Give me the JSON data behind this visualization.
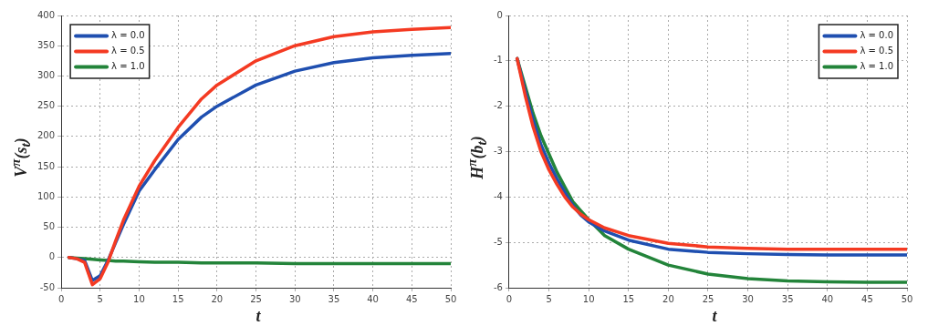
{
  "chart_data": [
    {
      "type": "line",
      "xlabel": "t",
      "ylabel": "V$^{π}$(s$_{t}$)",
      "x": [
        1,
        2,
        3,
        4,
        5,
        6,
        7,
        8,
        10,
        12,
        15,
        18,
        20,
        25,
        30,
        35,
        40,
        45,
        50
      ],
      "series": [
        {
          "name": "λ = 0.0",
          "color": "#1f4fb0",
          "values": [
            0,
            -2,
            -5,
            -38,
            -30,
            -5,
            25,
            55,
            110,
            145,
            195,
            232,
            250,
            285,
            308,
            322,
            330,
            334,
            337
          ]
        },
        {
          "name": "λ = 0.5",
          "color": "#f43a22",
          "values": [
            0,
            -2,
            -8,
            -45,
            -35,
            -8,
            28,
            62,
            118,
            160,
            215,
            262,
            285,
            325,
            350,
            365,
            373,
            377,
            380
          ]
        },
        {
          "name": "λ = 1.0",
          "color": "#23843a",
          "values": [
            0,
            -1,
            -2,
            -3,
            -4,
            -5,
            -6,
            -6,
            -7,
            -8,
            -8,
            -9,
            -9,
            -9,
            -10,
            -10,
            -10,
            -10,
            -10
          ]
        }
      ],
      "xlim": [
        0,
        50
      ],
      "xticks": [
        0,
        5,
        10,
        15,
        20,
        25,
        30,
        35,
        40,
        45,
        50
      ],
      "ylim": [
        -50,
        400
      ],
      "yticks": [
        -50,
        0,
        50,
        100,
        150,
        200,
        250,
        300,
        350,
        400
      ],
      "grid": true,
      "legend": "top left",
      "marker": "none",
      "line_style": "solid"
    },
    {
      "type": "line",
      "xlabel": "t",
      "ylabel": "H$^{π}$(b$_{t}$)",
      "x": [
        1,
        2,
        3,
        4,
        5,
        6,
        7,
        8,
        9,
        10,
        12,
        15,
        20,
        25,
        30,
        35,
        40,
        45,
        50
      ],
      "series": [
        {
          "name": "λ = 0.0",
          "color": "#1f4fb0",
          "values": [
            -0.95,
            -1.65,
            -2.3,
            -2.85,
            -3.25,
            -3.6,
            -3.9,
            -4.18,
            -4.4,
            -4.55,
            -4.75,
            -4.95,
            -5.15,
            -5.22,
            -5.25,
            -5.27,
            -5.28,
            -5.28,
            -5.28
          ]
        },
        {
          "name": "λ = 0.5",
          "color": "#f43a22",
          "values": [
            -0.95,
            -1.75,
            -2.45,
            -3.0,
            -3.4,
            -3.72,
            -4.0,
            -4.22,
            -4.38,
            -4.5,
            -4.68,
            -4.85,
            -5.02,
            -5.1,
            -5.13,
            -5.15,
            -5.15,
            -5.15,
            -5.15
          ]
        },
        {
          "name": "λ = 1.0",
          "color": "#23843a",
          "values": [
            -0.95,
            -1.55,
            -2.15,
            -2.65,
            -3.05,
            -3.45,
            -3.78,
            -4.1,
            -4.3,
            -4.5,
            -4.85,
            -5.15,
            -5.5,
            -5.7,
            -5.8,
            -5.85,
            -5.87,
            -5.88,
            -5.88
          ]
        }
      ],
      "xlim": [
        0,
        50
      ],
      "xticks": [
        0,
        5,
        10,
        15,
        20,
        25,
        30,
        35,
        40,
        45,
        50
      ],
      "ylim": [
        -6,
        0
      ],
      "yticks": [
        -6,
        -5,
        -4,
        -3,
        -2,
        -1,
        0
      ],
      "grid": true,
      "legend": "top right",
      "marker": "none",
      "line_style": "solid"
    }
  ]
}
